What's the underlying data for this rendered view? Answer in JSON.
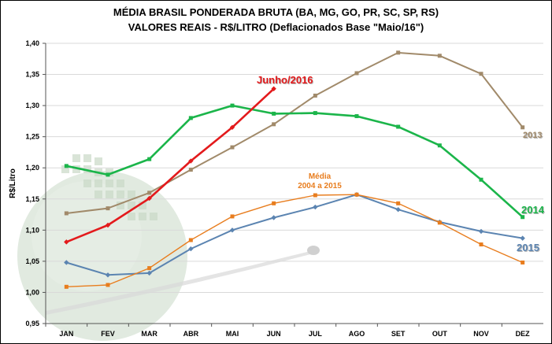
{
  "titles": {
    "line1": "MÉDIA BRASIL PONDERADA BRUTA (BA, MG, GO, PR, SC, SP, RS)",
    "line2": "VALORES REAIS - R$/LITRO (Deflacionados  Base  \"Maio/16\")"
  },
  "colors": {
    "s2016": "#e31a1c",
    "s2013": "#a18a6a",
    "s2014": "#1bb54a",
    "s2015": "#5b84b1",
    "media": "#e87d1e",
    "decor": "#c9d9c6"
  },
  "chart_data": {
    "type": "line",
    "title": "MÉDIA BRASIL PONDERADA BRUTA (BA, MG, GO, PR, SC, SP, RS)",
    "subtitle": "VALORES REAIS - R$/LITRO (Deflacionados  Base  \"Maio/16\")",
    "xlabel": "",
    "ylabel": "R$/Litro",
    "categories": [
      "JAN",
      "FEV",
      "MAR",
      "ABR",
      "MAI",
      "JUN",
      "JUL",
      "AGO",
      "SET",
      "OUT",
      "NOV",
      "DEZ"
    ],
    "ylim": [
      0.95,
      1.4
    ],
    "yticks": [
      "0,95",
      "1,00",
      "1,05",
      "1,10",
      "1,15",
      "1,20",
      "1,25",
      "1,30",
      "1,35",
      "1,40"
    ],
    "grid": true,
    "series": [
      {
        "name": "2013",
        "color": "#a18a6a",
        "marker": "square",
        "values": [
          1.127,
          1.135,
          1.16,
          1.197,
          1.233,
          1.27,
          1.316,
          1.352,
          1.385,
          1.38,
          1.351,
          1.265
        ]
      },
      {
        "name": "2014",
        "color": "#1bb54a",
        "marker": "square",
        "values": [
          1.203,
          1.189,
          1.214,
          1.28,
          1.3,
          1.287,
          1.288,
          1.283,
          1.266,
          1.236,
          1.181,
          1.121
        ]
      },
      {
        "name": "2015",
        "color": "#5b84b1",
        "marker": "diamond",
        "values": [
          1.048,
          1.028,
          1.031,
          1.07,
          1.1,
          1.12,
          1.137,
          1.157,
          1.133,
          1.113,
          1.098,
          1.087
        ]
      },
      {
        "name": "Média 2004 a 2015",
        "color": "#e87d1e",
        "marker": "square",
        "values": [
          1.009,
          1.012,
          1.039,
          1.084,
          1.122,
          1.143,
          1.156,
          1.157,
          1.143,
          1.112,
          1.077,
          1.048
        ]
      },
      {
        "name": "Junho/2016",
        "color": "#e31a1c",
        "marker": "diamond",
        "values": [
          1.081,
          1.108,
          1.151,
          1.211,
          1.265,
          1.327,
          null,
          null,
          null,
          null,
          null,
          null
        ]
      }
    ],
    "labels": {
      "s2016": "Junho/2016",
      "s2013": "2013",
      "s2014": "2014",
      "s2015": "2015",
      "media_line1": "Média",
      "media_line2": "2004 a 2015"
    }
  }
}
